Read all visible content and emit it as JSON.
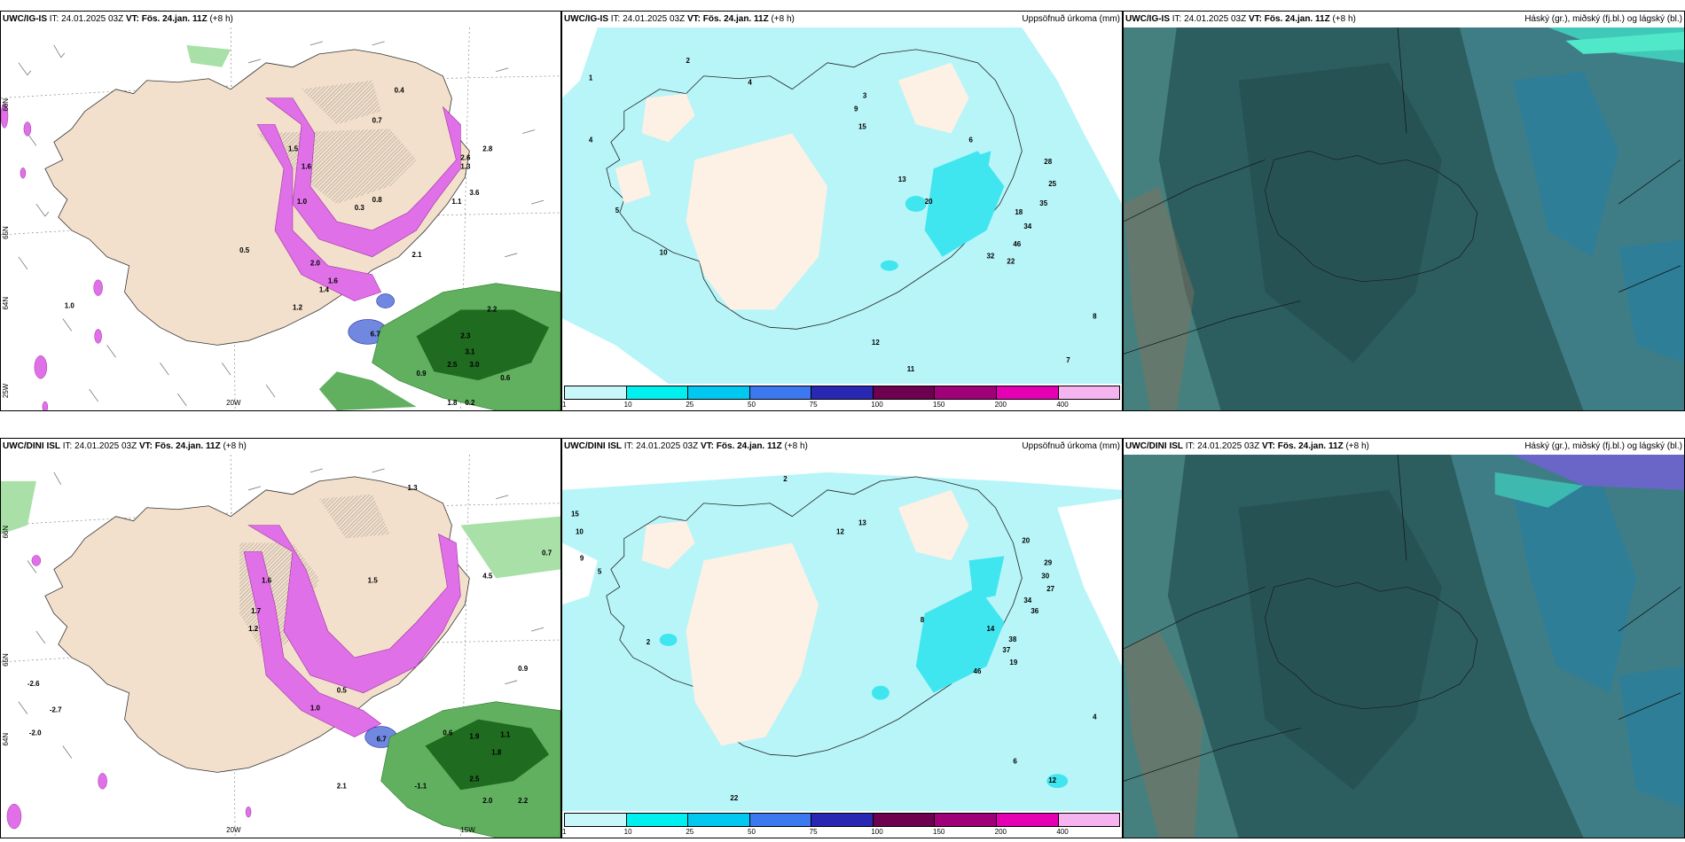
{
  "panels": [
    {
      "id": "p1",
      "left": "UWC/IG-IS",
      "it": "IT: 24.01.2025 03Z",
      "vt_label": "VT:",
      "vt": "Fös. 24.jan. 11Z",
      "lead": "(+8 h)",
      "right": ""
    },
    {
      "id": "p2",
      "left": "UWC/IG-IS",
      "it": "IT: 24.01.2025 03Z",
      "vt_label": "VT:",
      "vt": "Fös. 24.jan. 11Z",
      "lead": "(+8 h)",
      "right": "Uppsöfnuð úrkoma (mm)"
    },
    {
      "id": "p3",
      "left": "UWC/IG-IS",
      "it": "IT: 24.01.2025 03Z",
      "vt_label": "VT:",
      "vt": "Fös. 24.jan. 11Z",
      "lead": "(+8 h)",
      "right": "Háský (gr.), miðský (fj.bl.) og lágský (bl.)"
    },
    {
      "id": "p4",
      "left": "UWC/DINI ISL",
      "it": "IT: 24.01.2025 03Z",
      "vt_label": "VT:",
      "vt": "Fös. 24.jan. 11Z",
      "lead": "(+8 h)",
      "right": ""
    },
    {
      "id": "p5",
      "left": "UWC/DINI ISL",
      "it": "IT: 24.01.2025 03Z",
      "vt_label": "VT:",
      "vt": "Fös. 24.jan. 11Z",
      "lead": "(+8 h)",
      "right": "Uppsöfnuð úrkoma (mm)"
    },
    {
      "id": "p6",
      "left": "UWC/DINI ISL",
      "it": "IT: 24.01.2025 03Z",
      "vt_label": "VT:",
      "vt": "Fös. 24.jan. 11Z",
      "lead": "(+8 h)",
      "right": "Háský (gr.), miðský (fj.bl.) og lágský (bl.)"
    }
  ],
  "precip_scale": {
    "colors": [
      "#c8f7fa",
      "#00f0f0",
      "#00c8f0",
      "#3c78f0",
      "#2828b4",
      "#6e0050",
      "#a00078",
      "#e600b4",
      "#f5b4f0"
    ],
    "labels": [
      "1",
      "10",
      "25",
      "50",
      "75",
      "100",
      "150",
      "200",
      "400"
    ]
  },
  "axes": {
    "p1": {
      "lon_bottom": [
        "20W"
      ],
      "lat_left": [
        "25W",
        "64N",
        "65N",
        "66N"
      ]
    },
    "p4": {
      "lon_bottom": [
        "20W",
        "15W"
      ],
      "lat_left": [
        "64N",
        "65N",
        "66N"
      ]
    }
  },
  "map_colors": {
    "land": "#f2e0cc",
    "pink": "#e070e8",
    "pink_dark": "#b040b8",
    "blue": "#7088e0",
    "green": "#60b060",
    "green_dark": "#1f6b1f",
    "cyan_light": "#b8f5f8",
    "cyan": "#40e6ef",
    "cloud_base": "#2c5d5f",
    "cloud_mid": "#3f7d86",
    "cloud_high": "#6a66c8"
  },
  "p1_values": [
    "0.7",
    "1.5",
    "1.6",
    "1.3",
    "1.0",
    "1.4",
    "1.2",
    "0.9",
    "2.0",
    "1.6",
    "2.2",
    "2.3",
    "3.1",
    "3.0",
    "2.5",
    "0.6",
    "1.8",
    "0.2",
    "1.0",
    "0.3",
    "0.8",
    "2.6",
    "3.6",
    "1.1",
    "0.4",
    "0.5",
    "6.7",
    "2.1",
    "2.8"
  ],
  "p4_values": [
    "-2.6",
    "-2.7",
    "-2.0",
    "0.7",
    "0.9",
    "1.6",
    "1.7",
    "1.2",
    "1.0",
    "1.5",
    "0.6",
    "1.9",
    "1.8",
    "1.1",
    "2.5",
    "2.1",
    "-1.1",
    "2.0",
    "2.2",
    "0.5",
    "6.7",
    "4.5",
    "1.3"
  ],
  "p2_values": [
    "1",
    "2",
    "4",
    "3",
    "5",
    "10",
    "12",
    "15",
    "13",
    "9",
    "20",
    "28",
    "25",
    "35",
    "18",
    "34",
    "22",
    "32",
    "46",
    "6",
    "7",
    "8",
    "11",
    "4"
  ],
  "p5_values": [
    "15",
    "10",
    "9",
    "5",
    "2",
    "12",
    "13",
    "8",
    "20",
    "29",
    "30",
    "27",
    "34",
    "36",
    "38",
    "37",
    "19",
    "46",
    "14",
    "12",
    "6",
    "22",
    "2",
    "4"
  ]
}
